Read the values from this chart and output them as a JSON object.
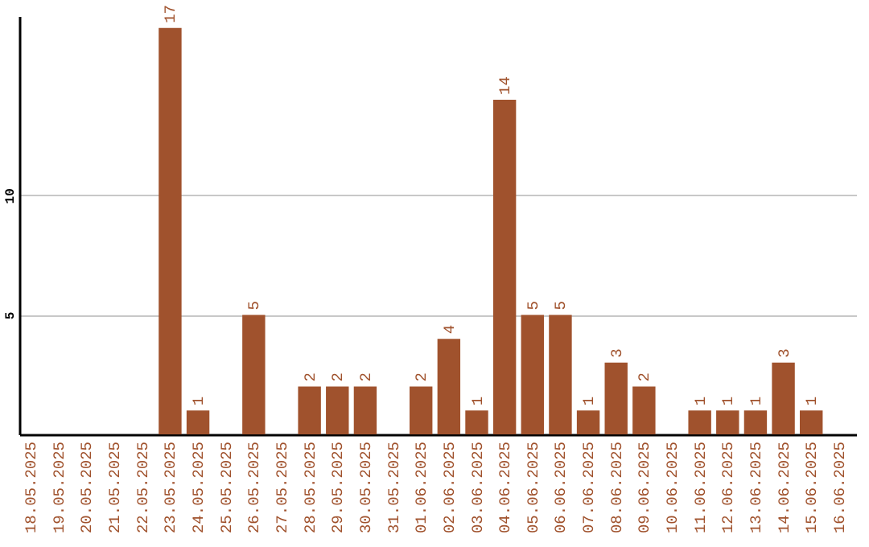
{
  "chart_data": {
    "type": "bar",
    "categories": [
      "18.05.2025",
      "19.05.2025",
      "20.05.2025",
      "21.05.2025",
      "22.05.2025",
      "23.05.2025",
      "24.05.2025",
      "25.05.2025",
      "26.05.2025",
      "27.05.2025",
      "28.05.2025",
      "29.05.2025",
      "30.05.2025",
      "31.05.2025",
      "01.06.2025",
      "02.06.2025",
      "03.06.2025",
      "04.06.2025",
      "05.06.2025",
      "06.06.2025",
      "07.06.2025",
      "08.06.2025",
      "09.06.2025",
      "10.06.2025",
      "11.06.2025",
      "12.06.2025",
      "13.06.2025",
      "14.06.2025",
      "15.06.2025",
      "16.06.2025"
    ],
    "values": [
      0,
      0,
      0,
      0,
      0,
      17,
      1,
      0,
      5,
      0,
      2,
      2,
      2,
      0,
      2,
      4,
      1,
      14,
      5,
      5,
      1,
      3,
      2,
      0,
      1,
      1,
      1,
      3,
      1,
      0
    ],
    "value_labels": [
      null,
      null,
      null,
      null,
      null,
      "17",
      "1",
      null,
      "5",
      null,
      "2",
      "2",
      "2",
      null,
      "2",
      "4",
      "1",
      "14",
      "5",
      "5",
      "1",
      "3",
      "2",
      null,
      "1",
      "1",
      "1",
      "3",
      "1",
      null
    ],
    "color": "#a0522d",
    "ylim": [
      0,
      17.5
    ],
    "yticks": [
      5,
      10
    ],
    "grid": "y"
  }
}
